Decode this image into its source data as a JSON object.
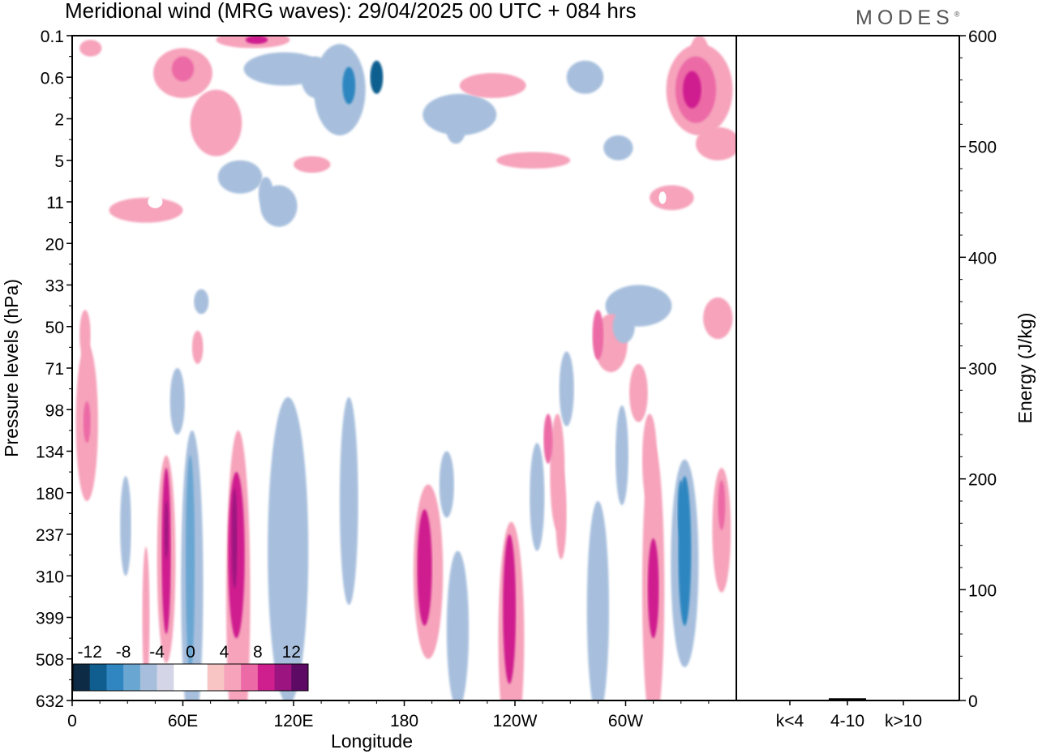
{
  "header": {
    "title": "Meridional wind (MRG waves):  29/04/2025  00 UTC  + 084 hrs",
    "brand": "MODES",
    "brand_mark": "®"
  },
  "chart_data": [
    {
      "type": "heatmap",
      "title": "Meridional wind (MRG waves):  29/04/2025  00 UTC  + 084 hrs",
      "xlabel": "Longitude",
      "ylabel": "Pressure levels (hPa)",
      "x_ticks": [
        {
          "lon": 0,
          "label": "0"
        },
        {
          "lon": 60,
          "label": "60E"
        },
        {
          "lon": 120,
          "label": "120E"
        },
        {
          "lon": 180,
          "label": "180"
        },
        {
          "lon": 240,
          "label": "120W"
        },
        {
          "lon": 300,
          "label": "60W"
        }
      ],
      "xlim": [
        0,
        360
      ],
      "y_levels": [
        "0.1",
        "0.6",
        "2",
        "5",
        "11",
        "20",
        "33",
        "50",
        "71",
        "98",
        "134",
        "180",
        "237",
        "310",
        "399",
        "508",
        "632"
      ],
      "colorbar": {
        "labels": [
          "-12",
          "-8",
          "-4",
          "0",
          "4",
          "8",
          "12"
        ],
        "colors": [
          "#0d2b44",
          "#0f5e8f",
          "#2f86c0",
          "#6aa6d2",
          "#a7bfdd",
          "#d4d6e8",
          "#ffffff",
          "#ffffff",
          "#f8c4c4",
          "#f6a3bb",
          "#ec6aa6",
          "#cf1f8f",
          "#9c1480",
          "#5c0a63"
        ]
      },
      "blobs": [
        {
          "lon": 8,
          "lev": 9.3,
          "wl": 6,
          "hl": 1.9,
          "v": 5
        },
        {
          "lon": 8,
          "lev": 9.3,
          "wl": 2,
          "hl": 0.5,
          "v": 7
        },
        {
          "lon": 7,
          "lev": 7.2,
          "wl": 3,
          "hl": 0.6,
          "v": 4.5
        },
        {
          "lon": 29,
          "lev": 11.8,
          "wl": 3,
          "hl": 1.2,
          "v": -5
        },
        {
          "lon": 40,
          "lev": 14,
          "wl": 2,
          "hl": 1.7,
          "v": 4.5
        },
        {
          "lon": 51,
          "lev": 12.6,
          "wl": 5,
          "hl": 2.5,
          "v": 5.5
        },
        {
          "lon": 51,
          "lev": 12.4,
          "wl": 2.5,
          "hl": 2,
          "v": 8
        },
        {
          "lon": 51,
          "lev": 11.9,
          "wl": 1,
          "hl": 0.7,
          "v": 10
        },
        {
          "lon": 65,
          "lev": 13.2,
          "wl": 6,
          "hl": 3.7,
          "v": -5.5
        },
        {
          "lon": 64,
          "lev": 12.7,
          "wl": 2.5,
          "hl": 2.6,
          "v": -7.5
        },
        {
          "lon": 57,
          "lev": 8.8,
          "wl": 4,
          "hl": 0.8,
          "v": -4.2
        },
        {
          "lon": 90,
          "lev": 13.5,
          "wl": 6.5,
          "hl": 4,
          "v": 5.5
        },
        {
          "lon": 89,
          "lev": 12.5,
          "wl": 4.5,
          "hl": 2,
          "v": 8
        },
        {
          "lon": 88,
          "lev": 12.1,
          "wl": 1.5,
          "hl": 1.2,
          "v": 10.5
        },
        {
          "lon": 117,
          "lev": 12.4,
          "wl": 11,
          "hl": 3.7,
          "v": -4.5
        },
        {
          "lon": 121,
          "lev": 12.4,
          "wl": 6,
          "hl": 2.5,
          "v": -6
        },
        {
          "lon": 150,
          "lev": 11.2,
          "wl": 5,
          "hl": 2.5,
          "v": -4.3
        },
        {
          "lon": 193,
          "lev": 12.9,
          "wl": 8,
          "hl": 2.1,
          "v": 5.5
        },
        {
          "lon": 191,
          "lev": 12.8,
          "wl": 4,
          "hl": 1.4,
          "v": 8
        },
        {
          "lon": 209,
          "lev": 14.3,
          "wl": 6,
          "hl": 1.9,
          "v": -4.5
        },
        {
          "lon": 210,
          "lev": 14.5,
          "wl": 2,
          "hl": 0.8,
          "v": -6
        },
        {
          "lon": 203,
          "lev": 10.8,
          "wl": 4,
          "hl": 0.8,
          "v": -4.2
        },
        {
          "lon": 238,
          "lev": 14.5,
          "wl": 7,
          "hl": 2.8,
          "v": 5.5
        },
        {
          "lon": 237,
          "lev": 13.8,
          "wl": 3.5,
          "hl": 1.8,
          "v": 8
        },
        {
          "lon": 252,
          "lev": 11.1,
          "wl": 4,
          "hl": 1.3,
          "v": -4.5
        },
        {
          "lon": 263,
          "lev": 10.5,
          "wl": 4,
          "hl": 1.4,
          "v": 5
        },
        {
          "lon": 265,
          "lev": 11.5,
          "wl": 3,
          "hl": 1.1,
          "v": 5
        },
        {
          "lon": 258,
          "lev": 9.7,
          "wl": 2.5,
          "hl": 0.6,
          "v": 6.5
        },
        {
          "lon": 268,
          "lev": 8.5,
          "wl": 4,
          "hl": 0.9,
          "v": -4.5
        },
        {
          "lon": 268,
          "lev": 8.5,
          "wl": 1.5,
          "hl": 0.4,
          "v": -6
        },
        {
          "lon": 285,
          "lev": 13.8,
          "wl": 6,
          "hl": 2.6,
          "v": -4.5
        },
        {
          "lon": 298,
          "lev": 10.1,
          "wl": 3.5,
          "hl": 1.2,
          "v": -4.2
        },
        {
          "lon": 315,
          "lev": 13.3,
          "wl": 6,
          "hl": 3.5,
          "v": 5.5
        },
        {
          "lon": 315,
          "lev": 13.3,
          "wl": 3,
          "hl": 1.2,
          "v": 8
        },
        {
          "lon": 332,
          "lev": 12.7,
          "wl": 7.5,
          "hl": 2.5,
          "v": -6
        },
        {
          "lon": 332,
          "lev": 12.4,
          "wl": 3.5,
          "hl": 1.8,
          "v": -8.5
        },
        {
          "lon": 330,
          "lev": 11.4,
          "wl": 1.8,
          "hl": 0.7,
          "v": -10
        },
        {
          "lon": 352,
          "lev": 11.9,
          "wl": 5,
          "hl": 1.5,
          "v": 5
        },
        {
          "lon": 352,
          "lev": 11.3,
          "wl": 2,
          "hl": 0.6,
          "v": 7
        },
        {
          "lon": 292,
          "lev": 7.4,
          "wl": 9,
          "hl": 0.7,
          "v": 5.5
        },
        {
          "lon": 285,
          "lev": 7.2,
          "wl": 3,
          "hl": 0.6,
          "v": 7.5
        },
        {
          "lon": 307,
          "lev": 8.6,
          "wl": 5,
          "hl": 0.7,
          "v": 4.5
        },
        {
          "lon": 313,
          "lev": 10.2,
          "wl": 4,
          "hl": 1.1,
          "v": 4.5
        },
        {
          "lon": 307,
          "lev": 6.5,
          "wl": 18,
          "hl": 0.5,
          "v": -4.5
        },
        {
          "lon": 299,
          "lev": 7,
          "wl": 6,
          "hl": 0.4,
          "v": -5.5
        },
        {
          "lon": 350,
          "lev": 6.8,
          "wl": 8,
          "hl": 0.5,
          "v": 4.3
        },
        {
          "lon": 68,
          "lev": 7.5,
          "wl": 3,
          "hl": 0.4,
          "v": 4.5
        },
        {
          "lon": 70,
          "lev": 6.4,
          "wl": 4,
          "hl": 0.3,
          "v": -4.2
        },
        {
          "lon": 115,
          "lev": 0.8,
          "wl": 22,
          "hl": 0.4,
          "v": -4.5
        },
        {
          "lon": 132,
          "lev": 1.0,
          "wl": 8,
          "hl": 0.5,
          "v": -6
        },
        {
          "lon": 147,
          "lev": 1.2,
          "wl": 9,
          "hl": 0.7,
          "v": -6
        },
        {
          "lon": 150,
          "lev": 1.2,
          "wl": 3.5,
          "hl": 0.45,
          "v": -9.5
        },
        {
          "lon": 165,
          "lev": 1.0,
          "wl": 3.5,
          "hl": 0.4,
          "v": -10.5
        },
        {
          "lon": 145,
          "lev": 1.3,
          "wl": 14,
          "hl": 1.1,
          "v": -4.5
        },
        {
          "lon": 98,
          "lev": 0.1,
          "wl": 20,
          "hl": 0.2,
          "v": 5.5
        },
        {
          "lon": 100,
          "lev": 0.1,
          "wl": 6,
          "hl": 0.1,
          "v": 8
        },
        {
          "lon": 60,
          "lev": 0.9,
          "wl": 16,
          "hl": 0.6,
          "v": 4.5
        },
        {
          "lon": 60,
          "lev": 0.8,
          "wl": 6,
          "hl": 0.3,
          "v": 6
        },
        {
          "lon": 78,
          "lev": 2.1,
          "wl": 14,
          "hl": 0.8,
          "v": 4.3
        },
        {
          "lon": 91,
          "lev": 3.4,
          "wl": 12,
          "hl": 0.4,
          "v": -4.5
        },
        {
          "lon": 105,
          "lev": 3.8,
          "wl": 4,
          "hl": 0.4,
          "v": -5.8
        },
        {
          "lon": 112,
          "lev": 4.1,
          "wl": 10,
          "hl": 0.5,
          "v": -4.5
        },
        {
          "lon": 40,
          "lev": 4.2,
          "wl": 20,
          "hl": 0.3,
          "v": 4.3
        },
        {
          "lon": 130,
          "lev": 3.1,
          "wl": 10,
          "hl": 0.2,
          "v": 4.3
        },
        {
          "lon": 210,
          "lev": 1.9,
          "wl": 20,
          "hl": 0.5,
          "v": -4.3
        },
        {
          "lon": 208,
          "lev": 2.3,
          "wl": 5,
          "hl": 0.3,
          "v": -5.5
        },
        {
          "lon": 228,
          "lev": 1.2,
          "wl": 18,
          "hl": 0.3,
          "v": 4.3
        },
        {
          "lon": 278,
          "lev": 1.0,
          "wl": 10,
          "hl": 0.4,
          "v": -4.2
        },
        {
          "lon": 340,
          "lev": 1.3,
          "wl": 18,
          "hl": 1.1,
          "v": 4.5
        },
        {
          "lon": 338,
          "lev": 1.3,
          "wl": 11,
          "hl": 0.8,
          "v": 6
        },
        {
          "lon": 336,
          "lev": 1.3,
          "wl": 5,
          "hl": 0.45,
          "v": 8
        },
        {
          "lon": 350,
          "lev": 2.6,
          "wl": 12,
          "hl": 0.4,
          "v": 4.3
        },
        {
          "lon": 250,
          "lev": 3.0,
          "wl": 20,
          "hl": 0.2,
          "v": 4.3
        },
        {
          "lon": 296,
          "lev": 2.7,
          "wl": 8,
          "hl": 0.3,
          "v": -4.2
        },
        {
          "lon": 325,
          "lev": 3.9,
          "wl": 12,
          "hl": 0.3,
          "v": 4.3
        },
        {
          "lon": 340,
          "lev": 0.4,
          "wl": 5,
          "hl": 0.4,
          "v": 4.3
        },
        {
          "lon": 10,
          "lev": 0.3,
          "wl": 6,
          "hl": 0.2,
          "v": 4.3
        }
      ],
      "blob_holes": [
        {
          "lon": 45,
          "lev": 4.0,
          "wl": 4,
          "hl": 0.15,
          "v": 0
        },
        {
          "lon": 320,
          "lev": 3.9,
          "wl": 2,
          "hl": 0.15,
          "v": 0
        }
      ]
    },
    {
      "type": "bar",
      "ylabel": "Energy (J/kg)",
      "categories": [
        "k<4",
        "4-10",
        "k>10"
      ],
      "values": [
        0.5,
        2,
        0.2
      ],
      "ylim": [
        0,
        600
      ],
      "y_ticks": [
        "0",
        "100",
        "200",
        "300",
        "400",
        "500",
        "600"
      ]
    }
  ]
}
